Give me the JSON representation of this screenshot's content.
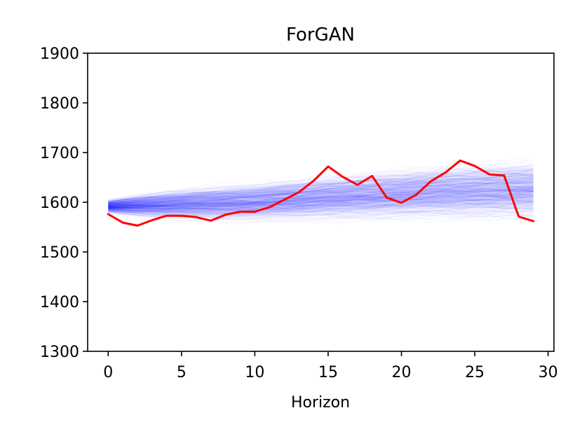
{
  "chart_data": {
    "type": "line",
    "title": "ForGAN",
    "xlabel": "Horizon",
    "ylabel": "",
    "xlim": [
      -1.4,
      30.4
    ],
    "ylim": [
      1300,
      1900
    ],
    "xticks": [
      0,
      5,
      10,
      15,
      20,
      25,
      30
    ],
    "yticks": [
      1300,
      1400,
      1500,
      1600,
      1700,
      1800,
      1900
    ],
    "grid": false,
    "legend": "none",
    "x": [
      0,
      1,
      2,
      3,
      4,
      5,
      6,
      7,
      8,
      9,
      10,
      11,
      12,
      13,
      14,
      15,
      16,
      17,
      18,
      19,
      20,
      21,
      22,
      23,
      24,
      25,
      26,
      27,
      28,
      29
    ],
    "series": [
      {
        "kind": "ground-truth",
        "color": "#ff0000",
        "values": [
          1576,
          1559,
          1553,
          1564,
          1573,
          1573,
          1570,
          1563,
          1575,
          1581,
          1581,
          1590,
          1605,
          1620,
          1643,
          1672,
          1651,
          1635,
          1653,
          1609,
          1599,
          1615,
          1642,
          1660,
          1684,
          1673,
          1656,
          1654,
          1571,
          1562
        ]
      },
      {
        "kind": "forecast-ensemble",
        "color": "#0000ff",
        "count": 500,
        "median": [
          1592,
          1593,
          1594,
          1595,
          1596,
          1597,
          1598,
          1599,
          1600,
          1601,
          1602,
          1604,
          1606,
          1607,
          1609,
          1611,
          1612,
          1614,
          1615,
          1617,
          1618,
          1620,
          1621,
          1622,
          1623,
          1624,
          1625,
          1626,
          1627,
          1628
        ],
        "lower": [
          1570,
          1564,
          1559,
          1555,
          1552,
          1550,
          1548,
          1547,
          1546,
          1545,
          1544,
          1543,
          1542,
          1541,
          1540,
          1539,
          1538,
          1537,
          1536,
          1535,
          1534,
          1533,
          1532,
          1531,
          1530,
          1529,
          1528,
          1527,
          1526,
          1525
        ],
        "upper": [
          1612,
          1620,
          1627,
          1633,
          1638,
          1642,
          1646,
          1650,
          1654,
          1658,
          1661,
          1664,
          1667,
          1670,
          1672,
          1675,
          1677,
          1679,
          1681,
          1683,
          1685,
          1687,
          1689,
          1691,
          1693,
          1695,
          1697,
          1698,
          1699,
          1700
        ]
      }
    ]
  }
}
